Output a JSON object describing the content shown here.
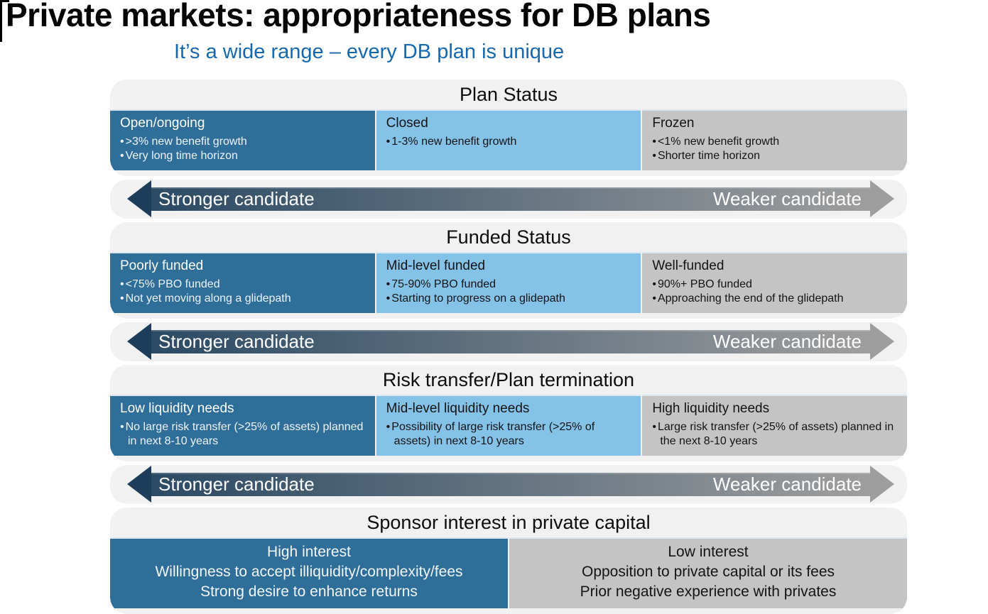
{
  "slide": {
    "title": "Private markets: appropriateness for DB plans",
    "subtitle": "It’s a wide range – every DB plan is unique"
  },
  "arrow": {
    "left_label": "Stronger candidate",
    "right_label": "Weaker candidate"
  },
  "colors": {
    "dark_blue_box": "#2E6E99",
    "light_blue_box": "#85C2E8",
    "gray_box": "#C4C4C4",
    "section_background": "#F1F1F1",
    "subtitle_blue": "#1568AD",
    "arrow_head_dark": "#1E3D5A",
    "arrow_head_gray": "#9E9E9E",
    "arrow_gradient_left": "#2B4A64",
    "arrow_gradient_right": "#9E9E9E"
  },
  "sections": [
    {
      "heading": "Plan Status",
      "boxes": [
        {
          "tone": "dark",
          "title": "Open/ongoing",
          "bullets": [
            ">3% new benefit growth",
            "Very long time horizon"
          ]
        },
        {
          "tone": "light",
          "title": "Closed",
          "bullets": [
            "1-3% new benefit growth"
          ]
        },
        {
          "tone": "gray",
          "title": "Frozen",
          "bullets": [
            "<1% new benefit growth",
            "Shorter time horizon"
          ]
        }
      ]
    },
    {
      "heading": "Funded Status",
      "boxes": [
        {
          "tone": "dark",
          "title": "Poorly funded",
          "bullets": [
            "<75% PBO funded",
            "Not yet moving along a glidepath"
          ]
        },
        {
          "tone": "light",
          "title": "Mid-level funded",
          "bullets": [
            "75-90% PBO funded",
            "Starting to progress on a glidepath"
          ]
        },
        {
          "tone": "gray",
          "title": "Well-funded",
          "bullets": [
            "90%+ PBO funded",
            "Approaching the end of the glidepath"
          ]
        }
      ]
    },
    {
      "heading": "Risk transfer/Plan termination",
      "boxes": [
        {
          "tone": "dark",
          "title": "Low liquidity needs",
          "bullets": [
            "No large risk transfer (>25% of assets) planned in next 8-10 years"
          ]
        },
        {
          "tone": "light",
          "title": "Mid-level liquidity needs",
          "bullets": [
            "Possibility of large risk transfer (>25% of assets) in next 8-10 years"
          ]
        },
        {
          "tone": "gray",
          "title": "High liquidity needs",
          "bullets": [
            "Large risk transfer (>25% of assets) planned in the next 8-10 years"
          ]
        }
      ]
    }
  ],
  "sponsor": {
    "heading": "Sponsor interest in private capital",
    "high": {
      "lines": [
        "High interest",
        "Willingness to accept illiquidity/complexity/fees",
        "Strong desire to enhance returns"
      ]
    },
    "low": {
      "lines": [
        "Low interest",
        "Opposition to private capital or its fees",
        "Prior negative experience with privates"
      ]
    }
  }
}
